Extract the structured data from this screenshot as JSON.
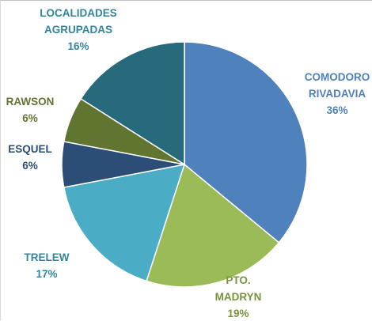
{
  "chart_data": {
    "type": "pie",
    "title": "",
    "slices": [
      {
        "label_lines": [
          "COMODORO",
          "RIVADAVIA"
        ],
        "value_label": "36%",
        "value": 36,
        "color": "#4f81bd",
        "label_color": "#4f81bd"
      },
      {
        "label_lines": [
          "PTO.",
          "MADRYN"
        ],
        "value_label": "19%",
        "value": 19,
        "color": "#9bbb59",
        "label_color": "#77933c"
      },
      {
        "label_lines": [
          "TRELEW"
        ],
        "value_label": "17%",
        "value": 17,
        "color": "#4bacc6",
        "label_color": "#31859c"
      },
      {
        "label_lines": [
          "ESQUEL"
        ],
        "value_label": "6%",
        "value": 6,
        "color": "#2c4d75",
        "label_color": "#2c4d75"
      },
      {
        "label_lines": [
          "RAWSON"
        ],
        "value_label": "6%",
        "value": 6,
        "color": "#5f7530",
        "label_color": "#5f7530"
      },
      {
        "label_lines": [
          "LOCALIDADES",
          "AGRUPADAS"
        ],
        "value_label": "16%",
        "value": 16,
        "color": "#276a7c",
        "label_color": "#31859c"
      }
    ]
  }
}
